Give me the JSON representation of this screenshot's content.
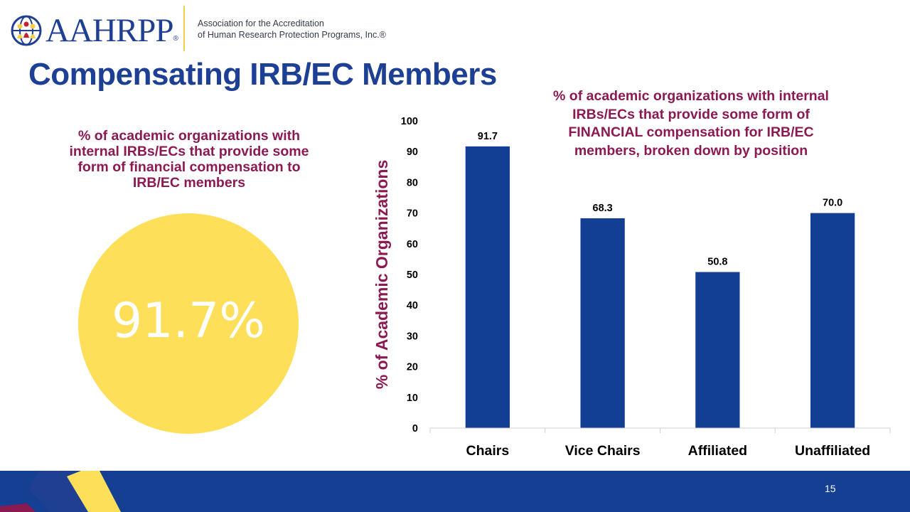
{
  "brand": {
    "logo_text": "AAHRPP",
    "registered_mark": "®",
    "org_name_line1": "Association for the Accreditation",
    "org_name_line2": "of Human Research Protection Programs, Inc.®",
    "colors": {
      "navy": "#1f3f93",
      "gold": "#f2cf47",
      "maroon": "#8c1a52",
      "red": "#c8202f"
    }
  },
  "slide": {
    "title": "Compensating IRB/EC Members",
    "page_number": "15"
  },
  "left_panel": {
    "caption": "% of academic organizations with internal IRBs/ECs that provide some form of financial compensation to IRB/EC members",
    "stat_value": "91.7%",
    "circle_color": "#fedf5a"
  },
  "chart_data": {
    "type": "bar",
    "title": "% of academic organizations with internal IRBs/ECs that provide some form of FINANCIAL compensation for IRB/EC members, broken down by position",
    "categories": [
      "Chairs",
      "Vice Chairs",
      "Affiliated",
      "Unaffiliated"
    ],
    "values": [
      91.7,
      68.3,
      50.8,
      70.0
    ],
    "data_labels": [
      "91.7",
      "68.3",
      "50.8",
      "70.0"
    ],
    "ylabel": "% of Academic Organizations",
    "xlabel": "",
    "ylim": [
      0,
      100
    ],
    "yticks": [
      0,
      10,
      20,
      30,
      40,
      50,
      60,
      70,
      80,
      90,
      100
    ],
    "grid": false,
    "bar_color": "#123e93"
  }
}
